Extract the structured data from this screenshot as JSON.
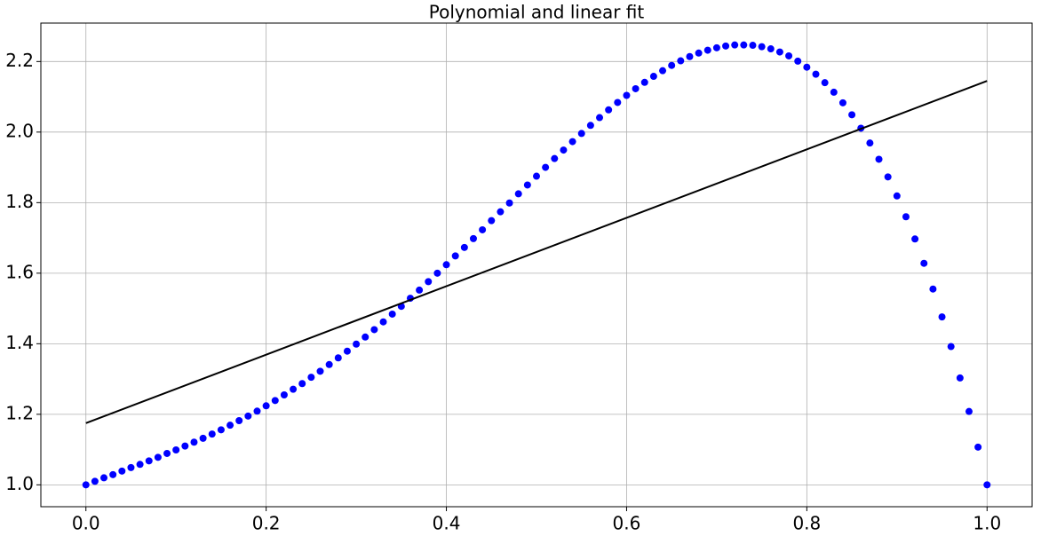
{
  "chart_data": {
    "type": "scatter",
    "title": "Polynomial and linear fit",
    "xlim": [
      -0.05,
      1.05
    ],
    "ylim": [
      0.938,
      2.309
    ],
    "xticks": [
      {
        "value": 0,
        "label": "0.0"
      },
      0.2,
      0.4,
      0.6,
      0.8,
      {
        "value": 1,
        "label": "1.0"
      }
    ],
    "yticks": [
      {
        "value": 1,
        "label": "1.0"
      },
      1.2,
      1.4,
      1.6,
      1.8,
      {
        "value": 2,
        "label": "2.0"
      },
      2.2
    ],
    "grid": true,
    "series": [
      {
        "type": "scatter",
        "color": "#0000ff",
        "x": [
          0,
          0.01,
          0.02,
          0.03,
          0.04,
          0.05,
          0.06,
          0.07,
          0.08,
          0.09,
          0.1,
          0.11,
          0.12,
          0.13,
          0.14,
          0.15,
          0.16,
          0.17,
          0.18,
          0.19,
          0.2,
          0.21,
          0.22,
          0.23,
          0.24,
          0.25,
          0.26,
          0.27,
          0.28,
          0.29,
          0.3,
          0.31,
          0.32,
          0.33,
          0.34,
          0.35,
          0.36,
          0.37,
          0.38,
          0.39,
          0.4,
          0.41,
          0.42,
          0.43,
          0.44,
          0.45,
          0.46,
          0.47,
          0.48,
          0.49,
          0.5,
          0.51,
          0.52,
          0.53,
          0.54,
          0.55,
          0.56,
          0.57,
          0.58,
          0.59,
          0.6,
          0.61,
          0.62,
          0.63,
          0.64,
          0.65,
          0.66,
          0.67,
          0.68,
          0.69,
          0.7,
          0.71,
          0.72,
          0.73,
          0.74,
          0.75,
          0.76,
          0.77,
          0.78,
          0.79,
          0.8,
          0.81,
          0.82,
          0.83,
          0.84,
          0.85,
          0.86,
          0.87,
          0.88,
          0.89,
          0.9,
          0.91,
          0.92,
          0.93,
          0.94,
          0.95,
          0.96,
          0.97,
          0.98,
          0.99,
          1
        ],
        "values": [
          1,
          1.01,
          1.02,
          1.029,
          1.039,
          1.049,
          1.058,
          1.068,
          1.078,
          1.089,
          1.099,
          1.11,
          1.121,
          1.132,
          1.144,
          1.156,
          1.169,
          1.182,
          1.195,
          1.209,
          1.224,
          1.239,
          1.255,
          1.271,
          1.287,
          1.305,
          1.322,
          1.341,
          1.36,
          1.379,
          1.399,
          1.419,
          1.44,
          1.462,
          1.484,
          1.506,
          1.529,
          1.552,
          1.576,
          1.6,
          1.624,
          1.649,
          1.673,
          1.698,
          1.723,
          1.749,
          1.774,
          1.799,
          1.825,
          1.85,
          1.875,
          1.9,
          1.925,
          1.949,
          1.973,
          1.996,
          2.019,
          2.041,
          2.063,
          2.084,
          2.104,
          2.123,
          2.141,
          2.158,
          2.174,
          2.189,
          2.202,
          2.214,
          2.224,
          2.232,
          2.239,
          2.244,
          2.247,
          2.247,
          2.246,
          2.242,
          2.236,
          2.227,
          2.216,
          2.201,
          2.184,
          2.164,
          2.14,
          2.113,
          2.083,
          2.049,
          2.011,
          1.969,
          1.923,
          1.873,
          1.819,
          1.76,
          1.697,
          1.628,
          1.555,
          1.476,
          1.392,
          1.303,
          1.208,
          1.107,
          1
        ]
      },
      {
        "type": "line",
        "color": "#000000",
        "x": [
          0,
          1
        ],
        "values": [
          1.175,
          2.145
        ]
      }
    ]
  }
}
